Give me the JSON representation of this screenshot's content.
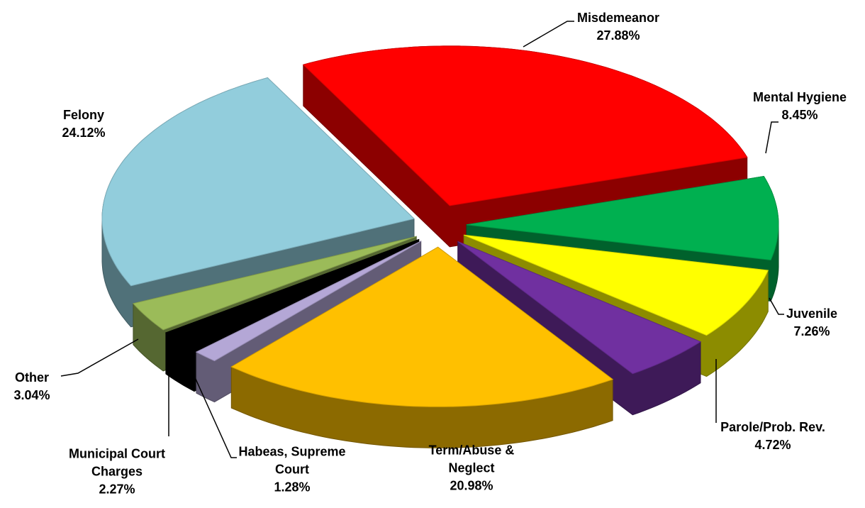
{
  "chart_data": {
    "type": "pie3d",
    "categories": [
      "Misdemeanor",
      "Mental Hygiene",
      "Juvenile",
      "Parole/Prob. Rev.",
      "Term/Abuse & Neglect",
      "Habeas, Supreme Court",
      "Municipal Court Charges",
      "Other",
      "Felony"
    ],
    "values": [
      27.88,
      8.45,
      7.26,
      4.72,
      20.98,
      1.28,
      2.27,
      3.04,
      24.12
    ],
    "value_labels": [
      "27.88%",
      "8.45%",
      "7.26%",
      "4.72%",
      "20.98%",
      "1.28%",
      "2.27%",
      "3.04%",
      "24.12%"
    ],
    "colors": [
      "#ff0000",
      "#00b050",
      "#ffff00",
      "#7030a0",
      "#ffc000",
      "#b4a7d6",
      "#000000",
      "#9bbb59",
      "#92cddc"
    ]
  }
}
